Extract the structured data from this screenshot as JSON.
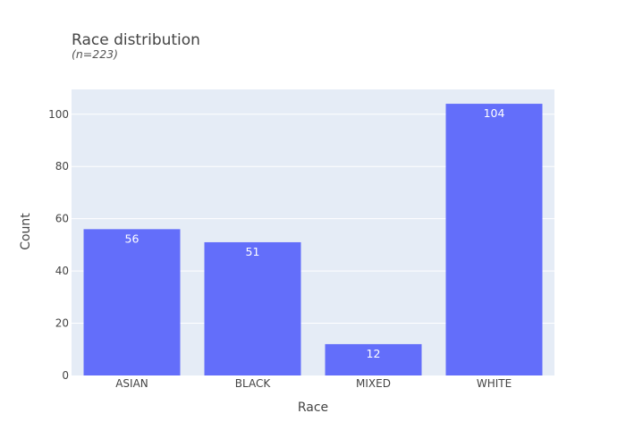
{
  "chart_data": {
    "type": "bar",
    "title": "Race distribution",
    "subtitle": "(n=223)",
    "xlabel": "Race",
    "ylabel": "Count",
    "categories": [
      "ASIAN",
      "BLACK",
      "MIXED",
      "WHITE"
    ],
    "values": [
      56,
      51,
      12,
      104
    ],
    "data_labels": [
      "56",
      "51",
      "12",
      "104"
    ],
    "ylim": [
      0,
      109.5
    ],
    "yticks": [
      0,
      20,
      40,
      60,
      80,
      100
    ],
    "ytick_labels": [
      "0",
      "20",
      "40",
      "60",
      "80",
      "100"
    ],
    "grid": true,
    "legend": "none",
    "colors": {
      "bar": "#636efa",
      "plot_bg": "#e5ecf6",
      "grid": "#ffffff",
      "text": "#444444"
    }
  }
}
